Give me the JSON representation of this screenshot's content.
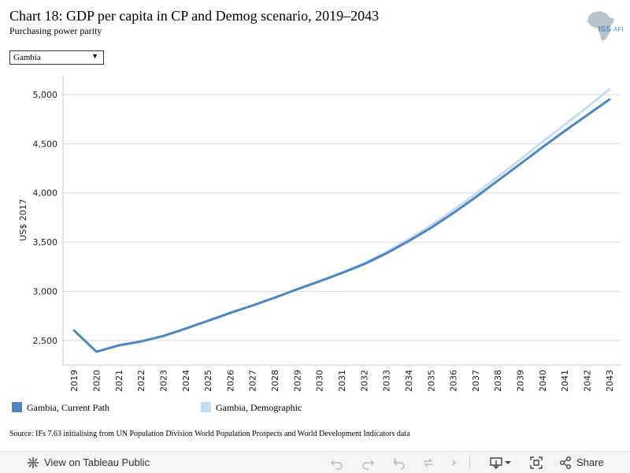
{
  "header": {
    "title": "Chart 18: GDP per capita in CP and Demog scenario, 2019–2043",
    "subtitle": "Purchasing power parity",
    "logo_text": "ISS",
    "logo_text2": "AFI"
  },
  "filter": {
    "selected": "Gambia"
  },
  "source": "Source: IFs 7.63 initialising from UN Population Division World Population Prospects and World Development Indicators data",
  "toolbar": {
    "view_label": "View on Tableau Public",
    "share_label": "Share",
    "icons": [
      "tableau-icon",
      "undo-icon",
      "redo-icon",
      "revert-icon",
      "refresh-icon",
      "download-icon",
      "fullscreen-icon",
      "share-icon"
    ]
  },
  "colors": {
    "current_path": "#4e86c0",
    "demographic": "#c8dcef",
    "grid": "#d9d9d9"
  },
  "chart_data": {
    "type": "line",
    "title": "Chart 18: GDP per capita in CP and Demog scenario, 2019–2043",
    "subtitle": "Purchasing power parity",
    "xlabel": "",
    "ylabel": "US$ 2017",
    "ylim": [
      2250,
      5200
    ],
    "yticks": [
      2500,
      3000,
      3500,
      4000,
      4500,
      5000
    ],
    "ytick_labels": [
      "2,500",
      "3,000",
      "3,500",
      "4,000",
      "4,500",
      "5,000"
    ],
    "x": [
      "2019",
      "2020",
      "2021",
      "2022",
      "2023",
      "2024",
      "2025",
      "2026",
      "2027",
      "2028",
      "2029",
      "2030",
      "2031",
      "2032",
      "2033",
      "2034",
      "2035",
      "2036",
      "2037",
      "2038",
      "2039",
      "2040",
      "2041",
      "2042",
      "2043"
    ],
    "grid": "horizontal",
    "legend_position": "bottom",
    "series": [
      {
        "name": "Gambia, Current Path",
        "values": [
          2600,
          2385,
          2450,
          2490,
          2545,
          2620,
          2700,
          2780,
          2855,
          2935,
          3020,
          3100,
          3185,
          3275,
          3385,
          3510,
          3645,
          3795,
          3955,
          4125,
          4295,
          4465,
          4630,
          4790,
          4950
        ]
      },
      {
        "name": "Gambia, Demographic",
        "values": [
          2600,
          2385,
          2450,
          2490,
          2545,
          2620,
          2700,
          2780,
          2855,
          2935,
          3020,
          3105,
          3190,
          3285,
          3400,
          3530,
          3670,
          3825,
          3990,
          4165,
          4340,
          4520,
          4695,
          4870,
          5055
        ]
      }
    ]
  }
}
